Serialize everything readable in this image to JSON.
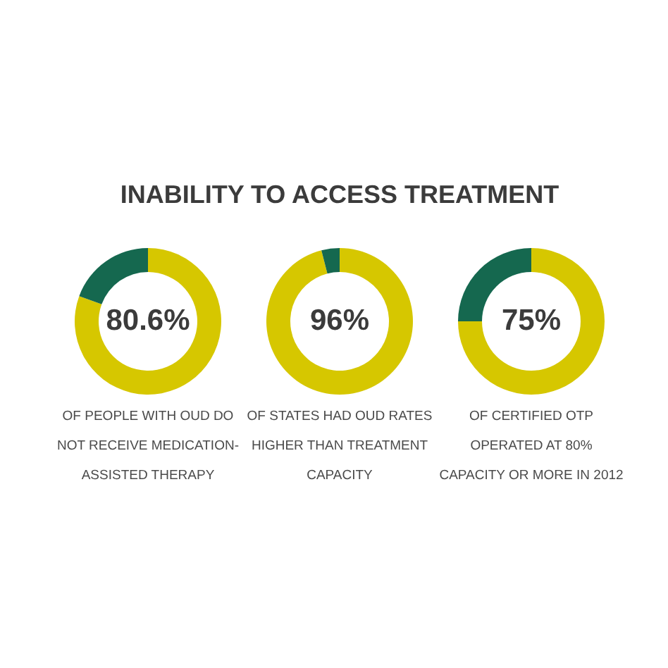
{
  "chart_data": [
    {
      "type": "donut",
      "title": "INABILITY TO ACCESS TREATMENT",
      "categories": [
        null,
        null
      ],
      "values": [
        80.6,
        19.4
      ],
      "colors": [
        "#d6c700",
        "#15684f"
      ],
      "value_labels": [
        "80.6%",
        null
      ],
      "annotations": [
        "OF PEOPLE WITH OUD DO\nNOT RECEIVE MEDICATION-\nASSISTED THERAPY"
      ]
    },
    {
      "type": "donut",
      "categories": [
        null,
        null
      ],
      "values": [
        96,
        4
      ],
      "colors": [
        "#d6c700",
        "#15684f"
      ],
      "value_labels": [
        "96%",
        null
      ],
      "annotations": [
        "OF STATES HAD OUD RATES\nHIGHER THAN TREATMENT\nCAPACITY"
      ]
    },
    {
      "type": "donut",
      "categories": [
        null,
        null
      ],
      "values": [
        75,
        25
      ],
      "colors": [
        "#d6c700",
        "#15684f"
      ],
      "value_labels": [
        "75%",
        null
      ],
      "annotations": [
        "OF CERTIFIED OTP\nOPERATED AT 80%\nCAPACITY OR MORE IN 2012"
      ]
    }
  ]
}
